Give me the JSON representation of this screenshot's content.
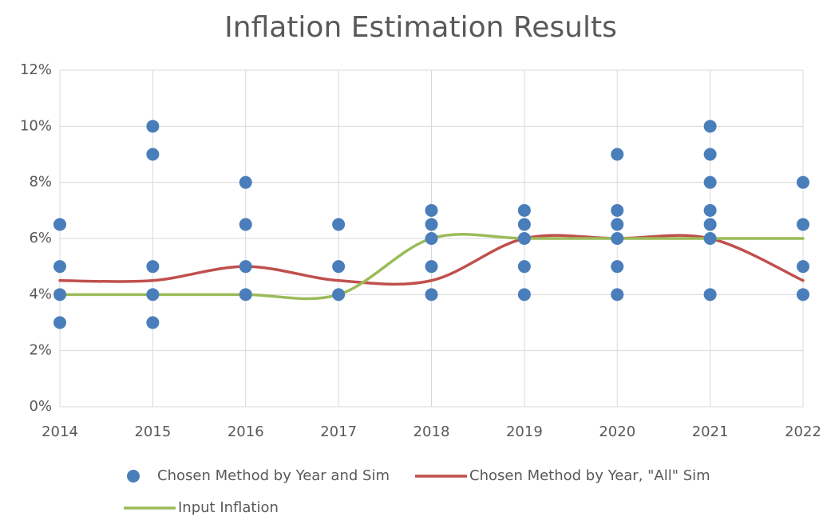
{
  "chart_data": {
    "type": "scatter",
    "title": "Inflation Estimation Results",
    "xlim": [
      2014,
      2022
    ],
    "xticks": [
      2014,
      2015,
      2016,
      2017,
      2018,
      2019,
      2020,
      2021,
      2022
    ],
    "ylim": [
      0,
      12
    ],
    "yticks": [
      {
        "value": 0,
        "label": "0%"
      },
      {
        "value": 2,
        "label": "2%"
      },
      {
        "value": 4,
        "label": "4%"
      },
      {
        "value": 6,
        "label": "6%"
      },
      {
        "value": 8,
        "label": "8%"
      },
      {
        "value": 10,
        "label": "10%"
      },
      {
        "value": 12,
        "label": "12%"
      }
    ],
    "grid": true,
    "legend": "bottom",
    "series": [
      {
        "name": "Chosen Method by Year and Sim",
        "type": "scatter",
        "color": "#4a7ebb",
        "x": [
          2014,
          2014,
          2014,
          2014,
          2015,
          2015,
          2015,
          2015,
          2015,
          2016,
          2016,
          2016,
          2016,
          2017,
          2017,
          2017,
          2018,
          2018,
          2018,
          2018,
          2018,
          2019,
          2019,
          2019,
          2019,
          2019,
          2020,
          2020,
          2020,
          2020,
          2020,
          2020,
          2021,
          2021,
          2021,
          2021,
          2021,
          2021,
          2021,
          2022,
          2022,
          2022,
          2022
        ],
        "values": [
          6.5,
          5,
          4,
          3,
          10,
          9,
          5,
          4,
          3,
          8,
          6.5,
          5,
          4,
          6.5,
          5,
          4,
          7,
          6.5,
          6,
          5,
          4,
          7,
          6.5,
          6,
          5,
          4,
          9,
          7,
          6.5,
          6,
          5,
          4,
          10,
          9,
          8,
          7,
          6.5,
          6,
          4,
          8,
          6.5,
          5,
          4
        ]
      },
      {
        "name": "Chosen Method by Year, \"All\" Sim",
        "type": "line",
        "smooth": true,
        "color": "#c0504d",
        "x": [
          2014,
          2015,
          2016,
          2017,
          2018,
          2019,
          2020,
          2021,
          2022
        ],
        "values": [
          4.5,
          4.5,
          5,
          4.5,
          4.5,
          6,
          6,
          6,
          4.5
        ]
      },
      {
        "name": "Input Inflation",
        "type": "line",
        "smooth": true,
        "color": "#9bbb59",
        "x": [
          2014,
          2015,
          2016,
          2017,
          2018,
          2019,
          2020,
          2021,
          2022
        ],
        "values": [
          4,
          4,
          4,
          4,
          6,
          6,
          6,
          6,
          6
        ]
      }
    ]
  }
}
